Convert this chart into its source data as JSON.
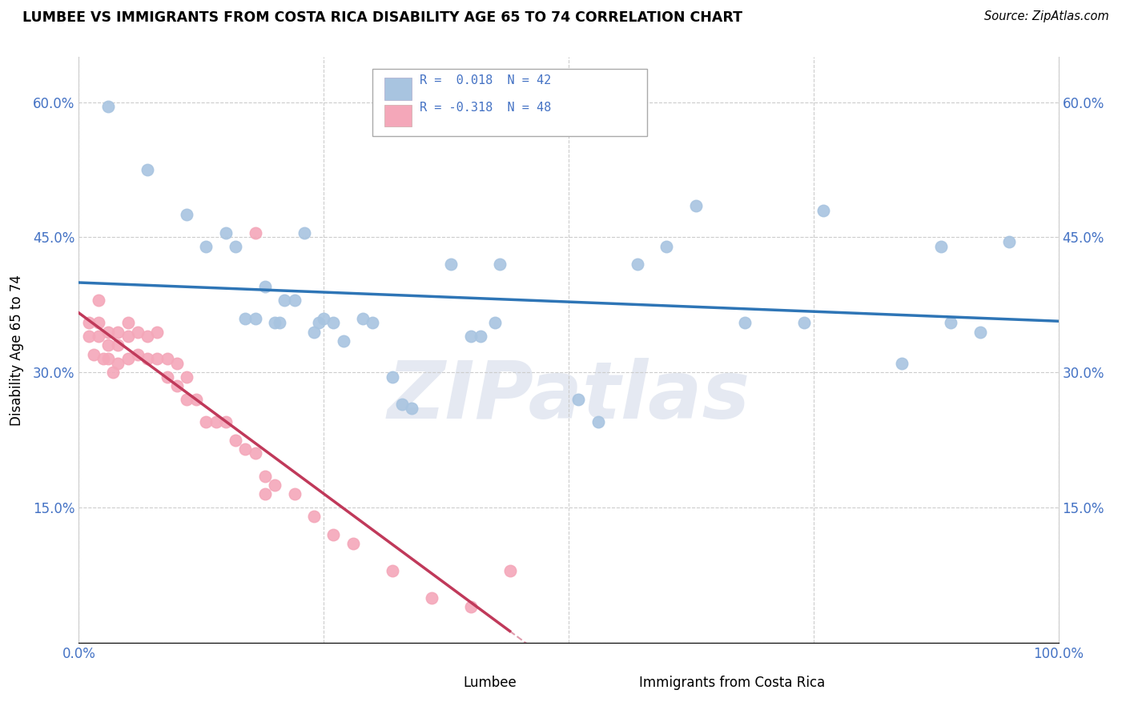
{
  "title": "LUMBEE VS IMMIGRANTS FROM COSTA RICA DISABILITY AGE 65 TO 74 CORRELATION CHART",
  "source": "Source: ZipAtlas.com",
  "ylabel": "Disability Age 65 to 74",
  "watermark": "ZIPatlas",
  "legend_r1": "R =  0.018",
  "legend_n1": "N = 42",
  "legend_r2": "R = -0.318",
  "legend_n2": "N = 48",
  "lumbee_label": "Lumbee",
  "costa_rica_label": "Immigrants from Costa Rica",
  "xlim": [
    0.0,
    100.0
  ],
  "ylim": [
    0.0,
    65.0
  ],
  "xticks": [
    0.0,
    25.0,
    50.0,
    75.0,
    100.0
  ],
  "xticklabels": [
    "0.0%",
    "",
    "",
    "",
    "100.0%"
  ],
  "yticks": [
    0.0,
    15.0,
    30.0,
    45.0,
    60.0
  ],
  "yticklabels_left": [
    "",
    "15.0%",
    "30.0%",
    "45.0%",
    "60.0%"
  ],
  "yticklabels_right": [
    "",
    "15.0%",
    "30.0%",
    "45.0%",
    "60.0%"
  ],
  "grid_color": "#cccccc",
  "background_color": "#ffffff",
  "lumbee_color": "#a8c4e0",
  "lumbee_line_color": "#2e75b6",
  "costa_rica_color": "#f4a7b9",
  "costa_rica_line_color": "#c0395a",
  "lumbee_x": [
    3.0,
    7.0,
    11.0,
    13.0,
    15.0,
    16.0,
    17.0,
    18.0,
    19.0,
    20.0,
    20.5,
    21.0,
    22.0,
    23.0,
    24.0,
    24.5,
    25.0,
    26.0,
    27.0,
    29.0,
    30.0,
    32.0,
    33.0,
    34.0,
    38.0,
    40.0,
    41.0,
    42.5,
    51.0,
    53.0,
    43.0,
    57.0,
    60.0,
    63.0,
    68.0,
    74.0,
    76.0,
    84.0,
    88.0,
    89.0,
    92.0,
    95.0
  ],
  "lumbee_y": [
    59.5,
    52.5,
    47.5,
    44.0,
    45.5,
    44.0,
    36.0,
    36.0,
    39.5,
    35.5,
    35.5,
    38.0,
    38.0,
    45.5,
    34.5,
    35.5,
    36.0,
    35.5,
    33.5,
    36.0,
    35.5,
    29.5,
    26.5,
    26.0,
    42.0,
    34.0,
    34.0,
    35.5,
    27.0,
    24.5,
    42.0,
    42.0,
    44.0,
    48.5,
    35.5,
    35.5,
    48.0,
    31.0,
    44.0,
    35.5,
    34.5,
    44.5
  ],
  "costa_rica_x": [
    1.0,
    1.0,
    1.5,
    2.0,
    2.0,
    2.0,
    2.5,
    3.0,
    3.0,
    3.0,
    3.5,
    4.0,
    4.0,
    4.0,
    5.0,
    5.0,
    5.0,
    6.0,
    6.0,
    7.0,
    7.0,
    8.0,
    8.0,
    9.0,
    9.0,
    10.0,
    10.0,
    11.0,
    11.0,
    12.0,
    13.0,
    14.0,
    15.0,
    16.0,
    17.0,
    18.0,
    19.0,
    20.0,
    22.0,
    24.0,
    26.0,
    28.0,
    32.0,
    36.0,
    40.0,
    44.0,
    18.0,
    19.0
  ],
  "costa_rica_y": [
    35.5,
    34.0,
    32.0,
    38.0,
    35.5,
    34.0,
    31.5,
    34.5,
    33.0,
    31.5,
    30.0,
    34.5,
    33.0,
    31.0,
    35.5,
    34.0,
    31.5,
    34.5,
    32.0,
    34.0,
    31.5,
    34.5,
    31.5,
    31.5,
    29.5,
    31.0,
    28.5,
    29.5,
    27.0,
    27.0,
    24.5,
    24.5,
    24.5,
    22.5,
    21.5,
    21.0,
    18.5,
    17.5,
    16.5,
    14.0,
    12.0,
    11.0,
    8.0,
    5.0,
    4.0,
    8.0,
    45.5,
    16.5
  ],
  "lumbee_line_x_start": 0.0,
  "lumbee_line_x_end": 100.0,
  "costa_rica_solid_x_end": 44.0
}
